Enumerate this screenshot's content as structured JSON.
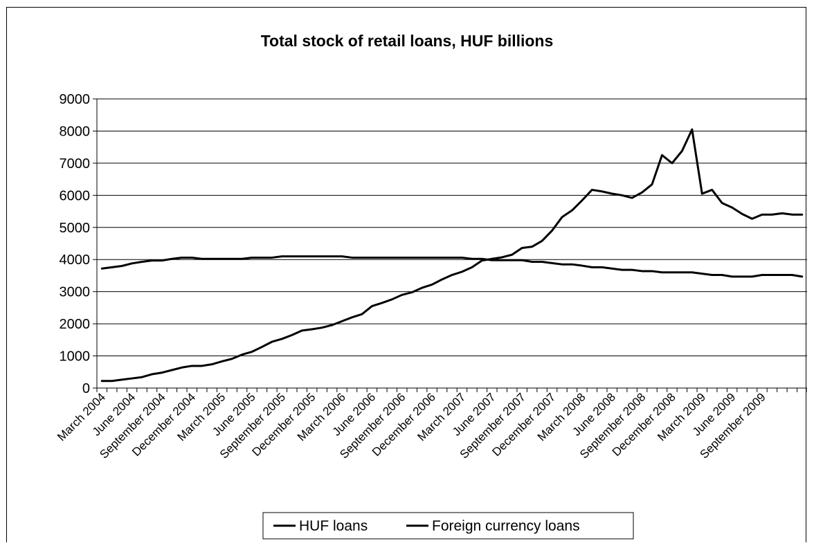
{
  "chart_data": {
    "type": "line",
    "title": "Total stock of retail loans, HUF billions",
    "xlabel": "",
    "ylabel": "",
    "ylim": [
      0,
      9000
    ],
    "yticks": [
      0,
      1000,
      2000,
      3000,
      4000,
      5000,
      6000,
      7000,
      8000,
      9000
    ],
    "grid": "horizontal",
    "legend_position": "bottom",
    "x": [
      "Mar 2004",
      "Apr 2004",
      "May 2004",
      "Jun 2004",
      "Jul 2004",
      "Aug 2004",
      "Sep 2004",
      "Oct 2004",
      "Nov 2004",
      "Dec 2004",
      "Jan 2005",
      "Feb 2005",
      "Mar 2005",
      "Apr 2005",
      "May 2005",
      "Jun 2005",
      "Jul 2005",
      "Aug 2005",
      "Sep 2005",
      "Oct 2005",
      "Nov 2005",
      "Dec 2005",
      "Jan 2006",
      "Feb 2006",
      "Mar 2006",
      "Apr 2006",
      "May 2006",
      "Jun 2006",
      "Jul 2006",
      "Aug 2006",
      "Sep 2006",
      "Oct 2006",
      "Nov 2006",
      "Dec 2006",
      "Jan 2007",
      "Feb 2007",
      "Mar 2007",
      "Apr 2007",
      "May 2007",
      "Jun 2007",
      "Jul 2007",
      "Aug 2007",
      "Sep 2007",
      "Oct 2007",
      "Nov 2007",
      "Dec 2007",
      "Jan 2008",
      "Feb 2008",
      "Mar 2008",
      "Apr 2008",
      "May 2008",
      "Jun 2008",
      "Jul 2008",
      "Aug 2008",
      "Sep 2008",
      "Oct 2008",
      "Nov 2008",
      "Dec 2008",
      "Jan 2009",
      "Feb 2009",
      "Mar 2009",
      "Apr 2009",
      "May 2009",
      "Jun 2009",
      "Jul 2009",
      "Aug 2009",
      "Sep 2009",
      "Oct 2009",
      "Nov 2009",
      "Dec 2009",
      "Jan 2010"
    ],
    "tick_labels": [
      {
        "index": 0,
        "label": "March 2004"
      },
      {
        "index": 3,
        "label": "June 2004"
      },
      {
        "index": 6,
        "label": "September 2004"
      },
      {
        "index": 9,
        "label": "December 2004"
      },
      {
        "index": 12,
        "label": "March 2005"
      },
      {
        "index": 15,
        "label": "June 2005"
      },
      {
        "index": 18,
        "label": "September 2005"
      },
      {
        "index": 21,
        "label": "December 2005"
      },
      {
        "index": 24,
        "label": "March 2006"
      },
      {
        "index": 27,
        "label": "June 2006"
      },
      {
        "index": 30,
        "label": "September 2006"
      },
      {
        "index": 33,
        "label": "December 2006"
      },
      {
        "index": 36,
        "label": "March 2007"
      },
      {
        "index": 39,
        "label": "June 2007"
      },
      {
        "index": 42,
        "label": "September 2007"
      },
      {
        "index": 45,
        "label": "December 2007"
      },
      {
        "index": 48,
        "label": "March 2008"
      },
      {
        "index": 51,
        "label": "June 2008"
      },
      {
        "index": 54,
        "label": "September 2008"
      },
      {
        "index": 57,
        "label": "December 2008"
      },
      {
        "index": 60,
        "label": "March 2009"
      },
      {
        "index": 63,
        "label": "June 2009"
      },
      {
        "index": 66,
        "label": "September 2009"
      }
    ],
    "series": [
      {
        "name": "HUF loans",
        "color": "#000000",
        "values": [
          3720,
          3760,
          3800,
          3880,
          3930,
          3970,
          3970,
          4020,
          4060,
          4060,
          4020,
          4020,
          4020,
          4020,
          4020,
          4060,
          4060,
          4060,
          4100,
          4100,
          4100,
          4100,
          4100,
          4100,
          4100,
          4060,
          4060,
          4060,
          4060,
          4060,
          4060,
          4060,
          4060,
          4060,
          4060,
          4060,
          4060,
          4020,
          4020,
          3980,
          3980,
          3980,
          3980,
          3930,
          3930,
          3890,
          3850,
          3850,
          3810,
          3760,
          3760,
          3720,
          3680,
          3680,
          3640,
          3640,
          3600,
          3600,
          3600,
          3600,
          3560,
          3520,
          3520,
          3470,
          3470,
          3470,
          3520,
          3520,
          3520,
          3520,
          3470
        ]
      },
      {
        "name": "Foreign currency loans",
        "color": "#000000",
        "values": [
          220,
          220,
          260,
          300,
          340,
          430,
          480,
          560,
          640,
          690,
          690,
          740,
          830,
          910,
          1040,
          1130,
          1280,
          1440,
          1530,
          1650,
          1790,
          1830,
          1880,
          1960,
          2080,
          2200,
          2300,
          2550,
          2650,
          2760,
          2900,
          2980,
          3120,
          3220,
          3380,
          3520,
          3620,
          3760,
          3970,
          4020,
          4070,
          4150,
          4360,
          4400,
          4580,
          4900,
          5320,
          5530,
          5840,
          6170,
          6120,
          6050,
          6000,
          5920,
          6090,
          6340,
          7250,
          7000,
          7380,
          8050,
          6050,
          6170,
          5760,
          5620,
          5420,
          5270,
          5400,
          5400,
          5440,
          5400,
          5400
        ]
      }
    ]
  }
}
